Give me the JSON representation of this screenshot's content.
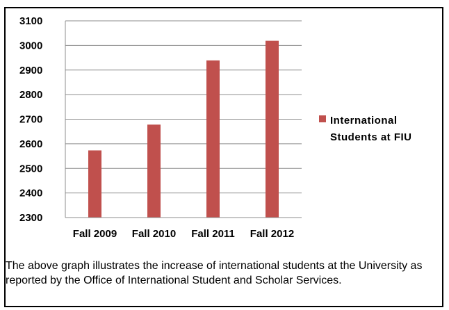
{
  "chart_data": {
    "type": "bar",
    "categories": [
      "Fall 2009",
      "Fall 2010",
      "Fall 2011",
      "Fall 2012"
    ],
    "series": [
      {
        "name": "International Students at FIU",
        "values": [
          2573,
          2678,
          2939,
          3019
        ]
      }
    ],
    "ylim": [
      2300,
      3100
    ],
    "yticks": [
      2300,
      2400,
      2500,
      2600,
      2700,
      2800,
      2900,
      3000,
      3100
    ],
    "title": "",
    "xlabel": "",
    "ylabel": "",
    "grid": true,
    "legend_position": "right",
    "bar_color": "#C0504D"
  },
  "legend": {
    "line1": "International",
    "line2": "Students at FIU"
  },
  "caption": "The above graph illustrates the increase of international students at the University as reported by the Office of International Student and Scholar Services."
}
